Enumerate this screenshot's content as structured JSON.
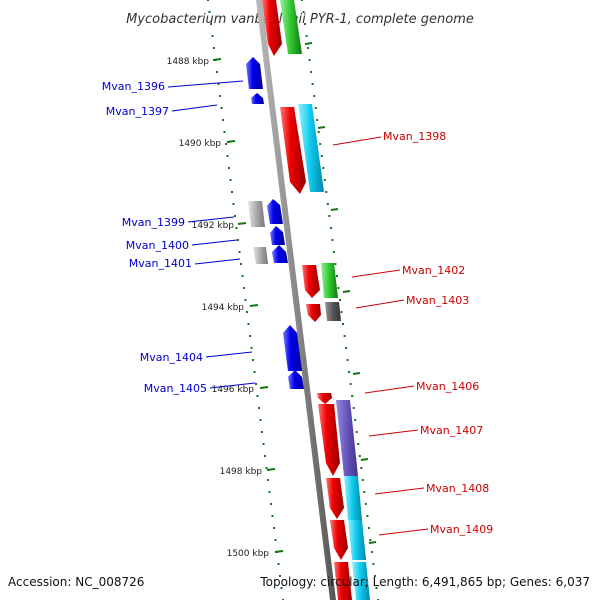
{
  "title": "Mycobacterium vanbaalenii PYR-1, complete genome",
  "footer": {
    "accession": "Accession: NC_008726",
    "summary": "Topology: circular; Length: 6,491,865 bp; Genes: 6,037"
  },
  "ticks": [
    "1488 kbp",
    "1490 kbp",
    "1492 kbp",
    "1494 kbp",
    "1496 kbp",
    "1498 kbp",
    "1500 kbp"
  ],
  "genes": [
    {
      "name": "Mvan_1396",
      "strand": "-",
      "color": "#0000ee"
    },
    {
      "name": "Mvan_1397",
      "strand": "-",
      "color": "#0000ee"
    },
    {
      "name": "Mvan_1398",
      "strand": "+",
      "color": "#dd0000"
    },
    {
      "name": "Mvan_1399",
      "strand": "-",
      "color": "#0000ee"
    },
    {
      "name": "Mvan_1400",
      "strand": "-",
      "color": "#0000ee"
    },
    {
      "name": "Mvan_1401",
      "strand": "-",
      "color": "#0000ee"
    },
    {
      "name": "Mvan_1402",
      "strand": "+",
      "color": "#dd0000"
    },
    {
      "name": "Mvan_1403",
      "strand": "+",
      "color": "#dd0000"
    },
    {
      "name": "Mvan_1404",
      "strand": "-",
      "color": "#0000ee"
    },
    {
      "name": "Mvan_1405",
      "strand": "-",
      "color": "#0000ee"
    },
    {
      "name": "Mvan_1406",
      "strand": "+",
      "color": "#dd0000"
    },
    {
      "name": "Mvan_1407",
      "strand": "+",
      "color": "#dd0000"
    },
    {
      "name": "Mvan_1408",
      "strand": "+",
      "color": "#dd0000"
    },
    {
      "name": "Mvan_1409",
      "strand": "+",
      "color": "#dd0000"
    }
  ],
  "colors": {
    "minus_label": "#0000cc",
    "plus_label": "#cc0000",
    "backbone": "#888888",
    "dots": "#117711",
    "cog_green": "#33cc33",
    "cog_cyan": "#11ccee",
    "cog_grey": "#aaaaaa",
    "cog_dark": "#555555",
    "cog_purple": "#6655bb"
  }
}
